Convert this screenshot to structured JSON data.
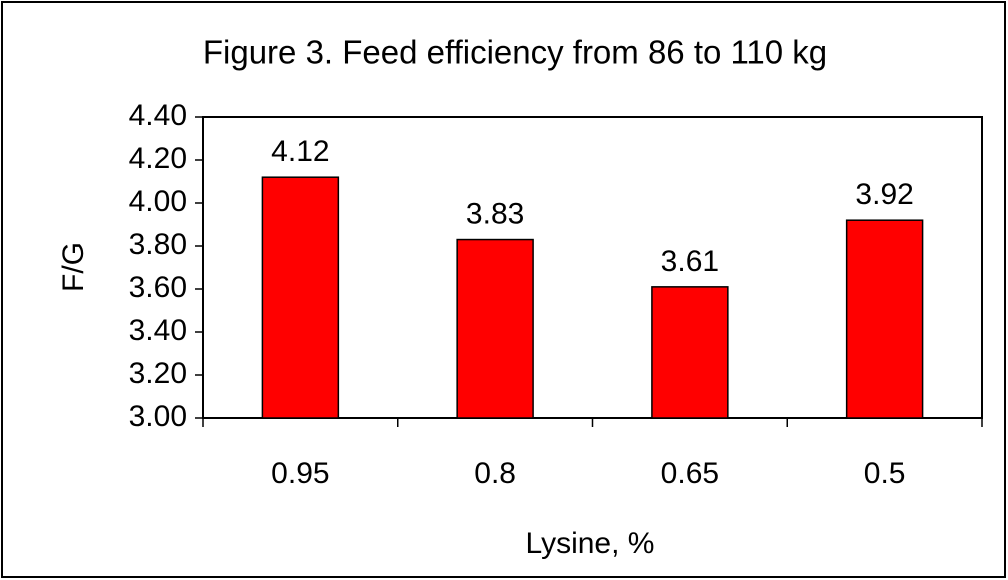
{
  "chart_data": {
    "type": "bar",
    "title": "Figure 3.   Feed efficiency from 86 to 110 kg",
    "x_label": "Lysine, %",
    "y_label": "F/G",
    "categories": [
      "0.95",
      "0.8",
      "0.65",
      "0.5"
    ],
    "values": [
      4.12,
      3.83,
      3.61,
      3.92
    ],
    "color": "#ff0000",
    "ylim": [
      3.0,
      4.4
    ],
    "yticks": [
      {
        "value": 3.0,
        "label": "3.00"
      },
      {
        "value": 3.2,
        "label": "3.20"
      },
      {
        "value": 3.4,
        "label": "3.40"
      },
      {
        "value": 3.6,
        "label": "3.60"
      },
      {
        "value": 3.8,
        "label": "3.80"
      },
      {
        "value": 4.0,
        "label": "4.00"
      },
      {
        "value": 4.2,
        "label": "4.20"
      },
      {
        "value": 4.4,
        "label": "4.40"
      }
    ],
    "grid": false
  }
}
